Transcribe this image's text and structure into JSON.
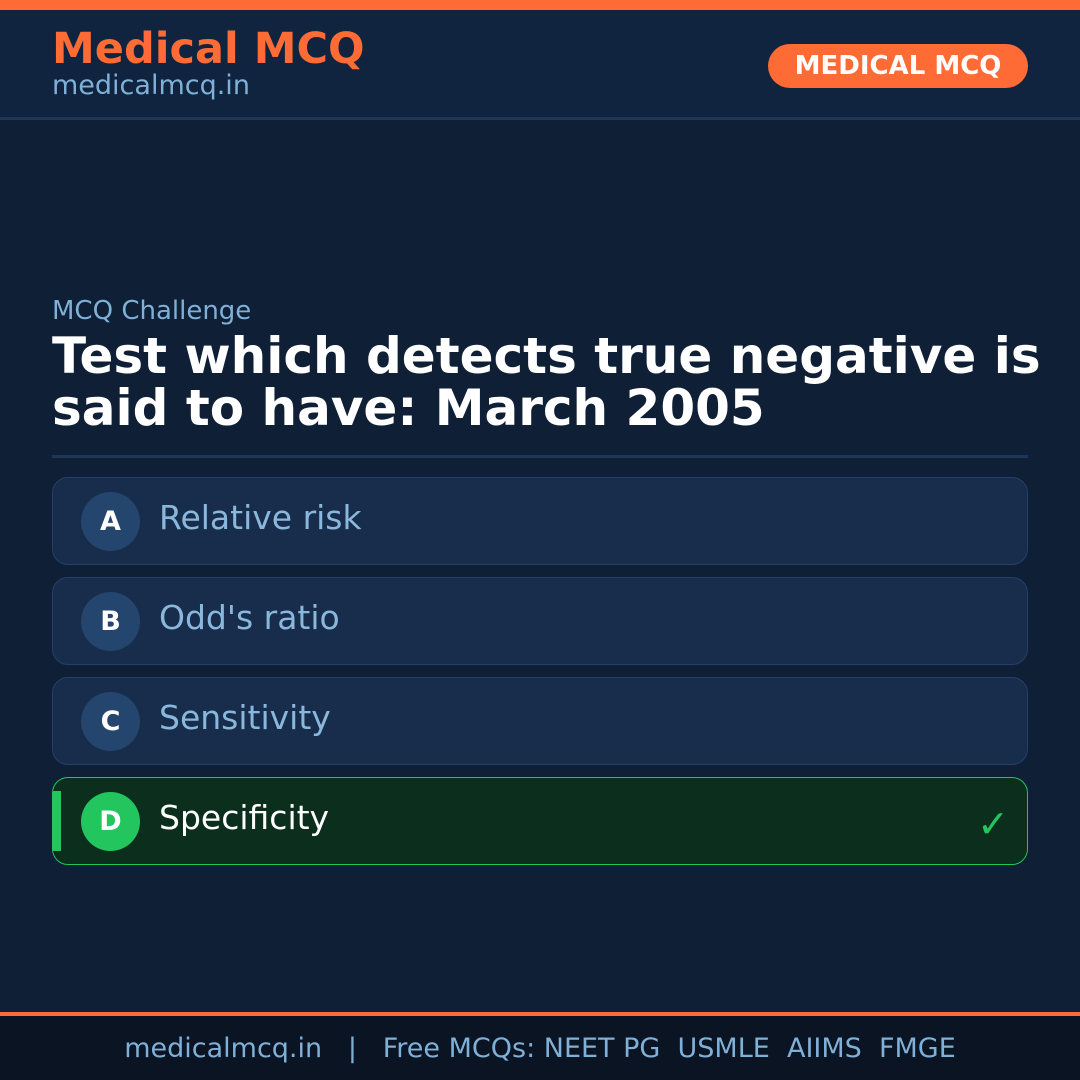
{
  "colors": {
    "accent": "#ff6b35",
    "correct": "#22c55e",
    "background": "#0e1f36"
  },
  "header": {
    "brand": "Medical MCQ",
    "site": "medicalmcq.in",
    "badge": "MEDICAL MCQ"
  },
  "question": {
    "kicker": "MCQ Challenge",
    "text": "Test which detects true negative is said to have: March 2005"
  },
  "options": [
    {
      "letter": "A",
      "text": "Relative risk"
    },
    {
      "letter": "B",
      "text": "Odd's ratio"
    },
    {
      "letter": "C",
      "text": "Sensitivity"
    },
    {
      "letter": "D",
      "text": "Specificity",
      "correct": true,
      "icon": "check-icon"
    }
  ],
  "footer": {
    "text": "medicalmcq.in   |   Free MCQs: NEET PG  USMLE  AIIMS  FMGE"
  }
}
